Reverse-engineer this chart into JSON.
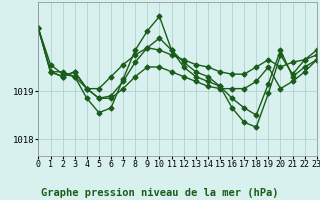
{
  "background_color": "#d8f0ee",
  "plot_bg_color": "#d8f0ee",
  "grid_color": "#aacccc",
  "line_color": "#1a5c1a",
  "title": "Graphe pression niveau de la mer (hPa)",
  "xlim": [
    0,
    23
  ],
  "ylim": [
    1017.65,
    1020.85
  ],
  "yticks": [
    1018,
    1019
  ],
  "xticks": [
    0,
    1,
    2,
    3,
    4,
    5,
    6,
    7,
    8,
    9,
    10,
    11,
    12,
    13,
    14,
    15,
    16,
    17,
    18,
    19,
    20,
    21,
    22,
    23
  ],
  "series": [
    [
      1020.3,
      1019.55,
      1019.35,
      1019.3,
      1019.05,
      1019.05,
      1019.3,
      1019.55,
      1019.75,
      1019.9,
      1019.85,
      1019.75,
      1019.65,
      1019.55,
      1019.5,
      1019.4,
      1019.35,
      1019.35,
      1019.5,
      1019.65,
      1019.5,
      1019.6,
      1019.65,
      1019.75
    ],
    [
      1020.3,
      1019.4,
      1019.3,
      1019.4,
      1019.05,
      1018.85,
      1018.85,
      1019.05,
      1019.3,
      1019.5,
      1019.5,
      1019.4,
      1019.3,
      1019.2,
      1019.1,
      1019.05,
      1019.05,
      1019.05,
      1019.2,
      1019.5,
      1019.05,
      1019.2,
      1019.4,
      1019.65
    ],
    [
      1020.3,
      1019.4,
      1019.4,
      1019.3,
      1018.85,
      1018.55,
      1018.65,
      1019.25,
      1019.85,
      1020.25,
      1020.55,
      1019.85,
      1019.5,
      1019.3,
      1019.2,
      1019.1,
      1018.65,
      1018.35,
      1018.25,
      1018.95,
      1019.75,
      1019.35,
      1019.65,
      1019.85
    ],
    [
      1020.3,
      1019.4,
      1019.3,
      1019.4,
      1019.05,
      1018.85,
      1018.9,
      1019.2,
      1019.6,
      1019.9,
      1020.1,
      1019.85,
      1019.6,
      1019.4,
      1019.3,
      1019.1,
      1018.85,
      1018.65,
      1018.5,
      1019.15,
      1019.85,
      1019.3,
      1019.5,
      1019.65
    ]
  ],
  "marker": "D",
  "marker_size": 2.5,
  "line_width": 1.0,
  "title_fontsize": 7.5,
  "tick_fontsize": 6.0
}
